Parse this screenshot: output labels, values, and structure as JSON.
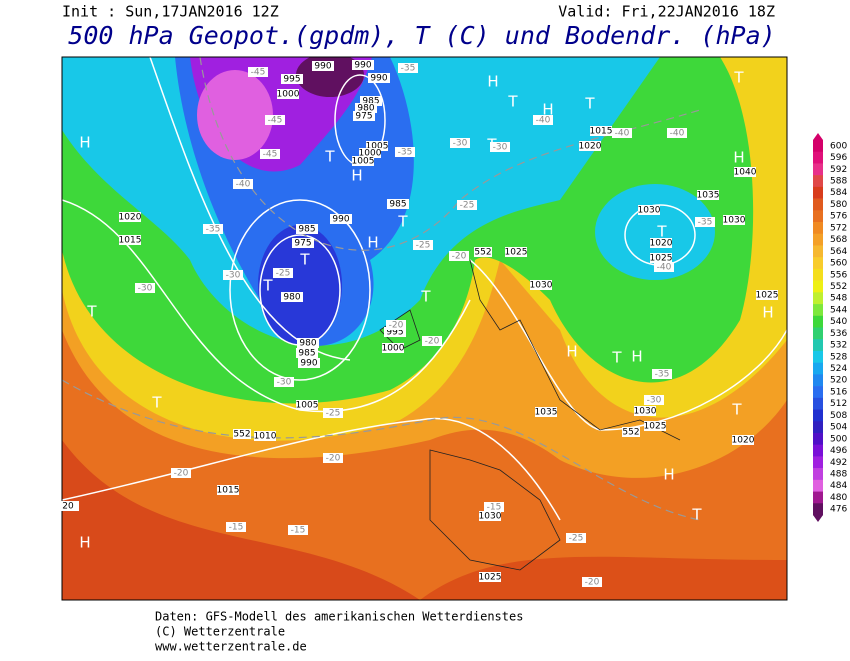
{
  "header": {
    "init": "Init : Sun,17JAN2016 12Z",
    "valid": "Valid: Fri,22JAN2016 18Z",
    "title": "500 hPa Geopot.(gpdm), T (C) und Bodendr. (hPa)"
  },
  "colorbar": {
    "values": [
      600,
      596,
      592,
      588,
      584,
      580,
      576,
      572,
      568,
      564,
      560,
      556,
      552,
      548,
      544,
      540,
      536,
      532,
      528,
      524,
      520,
      516,
      512,
      508,
      504,
      500,
      496,
      492,
      488,
      484,
      480,
      476
    ],
    "colors": [
      "#d4006a",
      "#e0107a",
      "#e8308a",
      "#e04848",
      "#d83c1c",
      "#e05a1e",
      "#e87020",
      "#f08a22",
      "#f4a028",
      "#f6b830",
      "#f8cc2c",
      "#f4de1c",
      "#eef014",
      "#bff030",
      "#7ee83c",
      "#3ed83a",
      "#30d070",
      "#22c8b0",
      "#18c8e8",
      "#18a8f0",
      "#2088f0",
      "#2a6ef0",
      "#2850e0",
      "#2030d0",
      "#3020c0",
      "#5010c8",
      "#7a10d8",
      "#a020e0",
      "#c040e0",
      "#e060e0",
      "#a01890",
      "#601060"
    ]
  },
  "map": {
    "highs_lows": [
      "H",
      "H",
      "T",
      "H",
      "T",
      "T",
      "H",
      "T",
      "H",
      "T",
      "T",
      "H",
      "T",
      "T",
      "T",
      "T",
      "H",
      "H",
      "T",
      "H",
      "T",
      "T",
      "H",
      "T",
      "H",
      "T"
    ],
    "pressure_labels": [
      "990",
      "995",
      "1000",
      "990",
      "990",
      "985",
      "980",
      "975",
      "1005",
      "1000",
      "1005",
      "985",
      "990",
      "985",
      "975",
      "980",
      "980",
      "985",
      "990",
      "995",
      "1000",
      "1005",
      "1010",
      "1015",
      "1020",
      "1015",
      "1030",
      "1025",
      "1030",
      "1020",
      "1025",
      "1015",
      "1020",
      "1040",
      "1035",
      "1030",
      "1025",
      "1035",
      "1030",
      "1025",
      "1020",
      "1030",
      "1025",
      "20"
    ],
    "temperature_labels": [
      "-45",
      "-45",
      "-45",
      "-40",
      "-35",
      "-30",
      "-30",
      "-35",
      "-35",
      "-30",
      "-30",
      "-25",
      "-25",
      "-20",
      "-40",
      "-40",
      "-40",
      "-35",
      "-40",
      "-25",
      "-20",
      "-20",
      "-30",
      "-25",
      "-20",
      "-20",
      "-15",
      "-15",
      "-15",
      "-25",
      "-20",
      "-35",
      "-30"
    ],
    "geopotential_labels": [
      "552",
      "552",
      "552"
    ]
  },
  "footer": {
    "line1": "Daten: GFS-Modell des amerikanischen Wetterdienstes",
    "line2": "(C) Wetterzentrale",
    "line3": "www.wetterzentrale.de"
  }
}
